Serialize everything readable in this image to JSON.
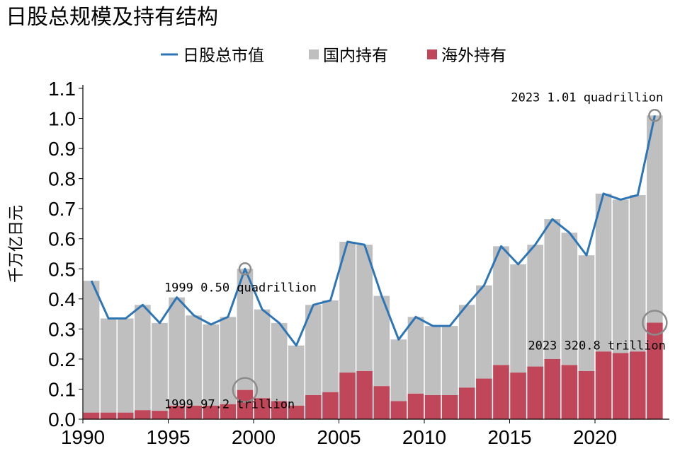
{
  "chart_data": {
    "type": "bar",
    "title": "日股总规模及持有结构",
    "ylabel": "千万亿日元",
    "ylim": [
      0,
      1.1
    ],
    "yticks": [
      "0.0",
      "0.1",
      "0.2",
      "0.3",
      "0.4",
      "0.5",
      "0.6",
      "0.7",
      "0.8",
      "0.9",
      "1.0",
      "1.1"
    ],
    "xticks": [
      "1990",
      "1995",
      "2000",
      "2005",
      "2010",
      "2015",
      "2020"
    ],
    "legend": [
      "日股总市值",
      "国内持有",
      "海外持有"
    ],
    "legend_position": "top-center",
    "colors": {
      "line": "#2e75b6",
      "domestic": "#bfbfbf",
      "foreign": "#c0475a",
      "marker": "#8c8c8c"
    },
    "years": [
      1990,
      1991,
      1992,
      1993,
      1994,
      1995,
      1996,
      1997,
      1998,
      1999,
      2000,
      2001,
      2002,
      2003,
      2004,
      2005,
      2006,
      2007,
      2008,
      2009,
      2010,
      2011,
      2012,
      2013,
      2014,
      2015,
      2016,
      2017,
      2018,
      2019,
      2020,
      2021,
      2022,
      2023
    ],
    "series": [
      {
        "name": "日股总市值",
        "type": "line",
        "values": [
          0.46,
          0.335,
          0.335,
          0.38,
          0.32,
          0.405,
          0.345,
          0.315,
          0.34,
          0.5,
          0.365,
          0.32,
          0.245,
          0.38,
          0.395,
          0.59,
          0.58,
          0.41,
          0.265,
          0.34,
          0.31,
          0.31,
          0.38,
          0.445,
          0.575,
          0.515,
          0.58,
          0.665,
          0.62,
          0.545,
          0.75,
          0.73,
          0.745,
          1.01
        ]
      },
      {
        "name": "海外持有",
        "type": "bar",
        "values": [
          0.022,
          0.022,
          0.022,
          0.03,
          0.028,
          0.045,
          0.045,
          0.045,
          0.05,
          0.0972,
          0.07,
          0.06,
          0.045,
          0.08,
          0.09,
          0.155,
          0.16,
          0.11,
          0.06,
          0.085,
          0.08,
          0.08,
          0.105,
          0.135,
          0.18,
          0.155,
          0.175,
          0.2,
          0.18,
          0.16,
          0.225,
          0.22,
          0.225,
          0.3208
        ]
      }
    ],
    "annotations": [
      {
        "year": 1999,
        "value": 0.5,
        "text": "1999 0.50 quadrillion"
      },
      {
        "year": 1999,
        "value": 0.0972,
        "text": "1999 97.2 trillion"
      },
      {
        "year": 2023,
        "value": 1.01,
        "text": "2023 1.01 quadrillion"
      },
      {
        "year": 2023,
        "value": 0.3208,
        "text": "2023 320.8 trillion"
      }
    ]
  }
}
